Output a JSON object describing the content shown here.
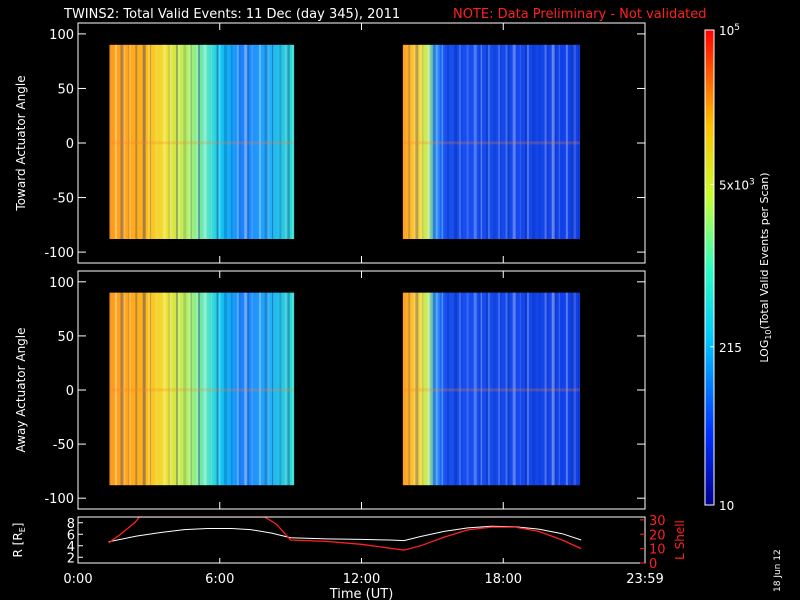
{
  "header": {
    "title": "TWINS2: Total Valid Events: 11 Dec (day 345), 2011",
    "note": "NOTE: Data Preliminary - Not validated"
  },
  "colors": {
    "background": "#000000",
    "foreground": "#ffffff",
    "note": "#ff2020",
    "lshell": "#ff2020",
    "r_trace": "#ffffff"
  },
  "date_stamp": "18 Jun 12",
  "chart_data": [
    {
      "type": "heatmap",
      "id": "toward",
      "ylabel": "Toward Actuator Angle",
      "ylim": [
        -110,
        110
      ],
      "yticks": [
        100,
        50,
        0,
        -50,
        -100
      ],
      "xlim": [
        0,
        24
      ],
      "data_ranges": [
        [
          1.33,
          9.15
        ],
        [
          13.75,
          21.25
        ]
      ],
      "angle_range": [
        -88,
        90
      ]
    },
    {
      "type": "heatmap",
      "id": "away",
      "ylabel": "Away Actuator Angle",
      "ylim": [
        -110,
        110
      ],
      "yticks": [
        100,
        50,
        0,
        -50,
        -100
      ],
      "xlim": [
        0,
        24
      ],
      "data_ranges": [
        [
          1.33,
          9.15
        ],
        [
          13.75,
          21.25
        ]
      ],
      "angle_range": [
        -88,
        90
      ]
    },
    {
      "type": "line",
      "id": "ephemeris",
      "ylabel": "R [RE]",
      "ylabel_parts": [
        "R [R",
        "E",
        "]"
      ],
      "ylim": [
        1,
        9
      ],
      "yticks": [
        2,
        4,
        6,
        8
      ],
      "y2label": "L Shell",
      "y2lim": [
        0,
        32
      ],
      "y2ticks": [
        0,
        10,
        20,
        30
      ],
      "xlabel": "Time (UT)",
      "xticks": [
        {
          "t": 0,
          "label": "0:00"
        },
        {
          "t": 6,
          "label": "6:00"
        },
        {
          "t": 12,
          "label": "12:00"
        },
        {
          "t": 18,
          "label": "18:00"
        },
        {
          "t": 24,
          "label": "23:59"
        }
      ],
      "series": [
        {
          "axis": "left",
          "x": [
            1.3,
            2.5,
            3.5,
            4.5,
            5.5,
            6.5,
            7.3,
            8.2,
            9.0,
            10.5,
            12.0,
            13.2,
            13.8,
            14.5,
            15.5,
            16.5,
            17.5,
            18.5,
            19.5,
            20.5,
            21.3
          ],
          "values": [
            4.7,
            5.7,
            6.3,
            6.8,
            7.0,
            7.0,
            6.8,
            6.2,
            5.4,
            5.2,
            5.1,
            5.0,
            4.9,
            5.6,
            6.5,
            7.1,
            7.4,
            7.3,
            6.9,
            6.1,
            5.0
          ]
        },
        {
          "axis": "right",
          "x": [
            1.3,
            1.8,
            2.4,
            2.6,
            7.9,
            8.4,
            9.0,
            10.5,
            12.0,
            13.8,
            14.5,
            15.5,
            16.5,
            17.5,
            18.5,
            19.5,
            20.5,
            21.3
          ],
          "values": [
            14,
            20,
            28,
            32,
            32,
            27,
            16,
            15,
            13,
            9,
            12,
            18,
            23,
            25,
            25,
            22,
            16,
            10
          ]
        }
      ]
    }
  ],
  "colorbar": {
    "label_parts": [
      "LOG",
      "10",
      "(Total Valid  Events per Scan)"
    ],
    "ticks": [
      {
        "value": 100000,
        "label": "10",
        "sup": "5"
      },
      {
        "value": 5000,
        "label": "5x10",
        "sup": "3"
      },
      {
        "value": 215,
        "label": "215",
        "sup": ""
      },
      {
        "value": 10,
        "label": "10",
        "sup": ""
      }
    ],
    "range": [
      10,
      100000
    ]
  }
}
